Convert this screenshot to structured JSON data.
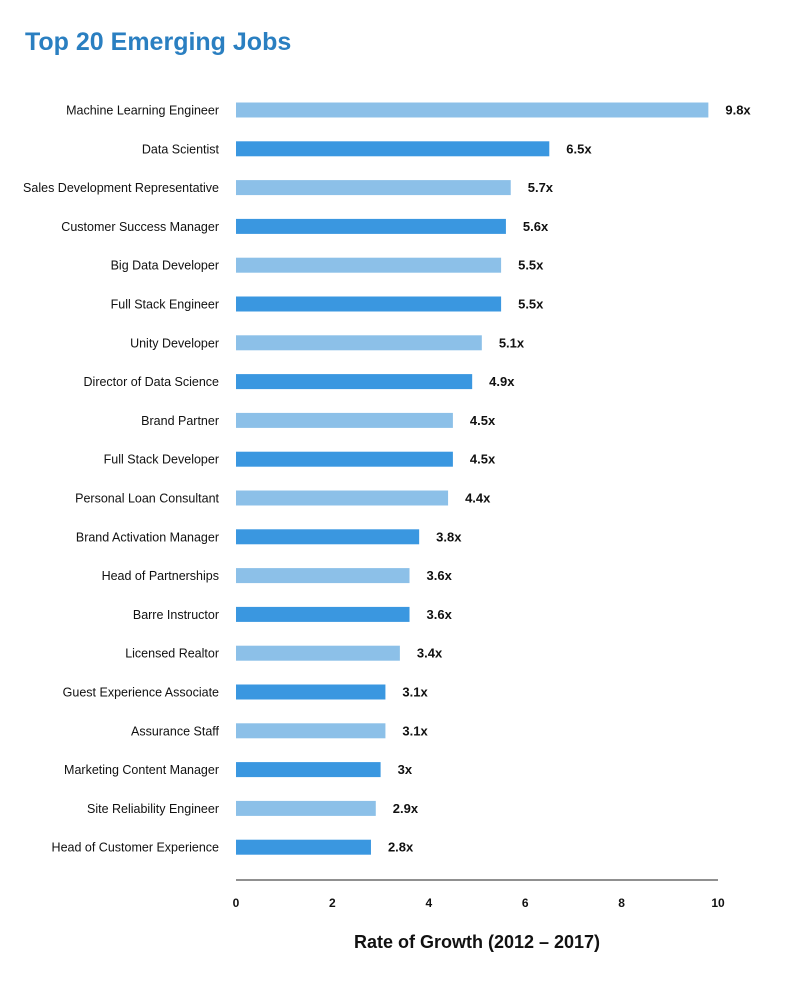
{
  "chart_data": {
    "type": "bar",
    "orientation": "horizontal",
    "title": "Top 20 Emerging Jobs",
    "xlabel": "Rate of Growth (2012 – 2017)",
    "ylabel": "",
    "xlim": [
      0,
      10
    ],
    "xticks": [
      "0",
      "2",
      "4",
      "6",
      "8",
      "10"
    ],
    "grid": false,
    "colors": [
      "#8cc0e8",
      "#3a97e0"
    ],
    "categories": [
      "Machine Learning Engineer",
      "Data Scientist",
      "Sales Development Representative",
      "Customer Success Manager",
      "Big Data Developer",
      "Full Stack Engineer",
      "Unity Developer",
      "Director of Data Science",
      "Brand Partner",
      "Full Stack Developer",
      "Personal Loan Consultant",
      "Brand Activation Manager",
      "Head of Partnerships",
      "Barre Instructor",
      "Licensed Realtor",
      "Guest Experience Associate",
      "Assurance Staff",
      "Marketing Content Manager",
      "Site Reliability Engineer",
      "Head of Customer Experience"
    ],
    "values": [
      9.8,
      6.5,
      5.7,
      5.6,
      5.5,
      5.5,
      5.1,
      4.9,
      4.5,
      4.5,
      4.4,
      3.8,
      3.6,
      3.6,
      3.4,
      3.1,
      3.1,
      3,
      2.9,
      2.8
    ],
    "value_labels": [
      "9.8x",
      "6.5x",
      "5.7x",
      "5.6x",
      "5.5x",
      "5.5x",
      "5.1x",
      "4.9x",
      "4.5x",
      "4.5x",
      "4.4x",
      "3.8x",
      "3.6x",
      "3.6x",
      "3.4x",
      "3.1x",
      "3.1x",
      "3x",
      "2.9x",
      "2.8x"
    ]
  }
}
